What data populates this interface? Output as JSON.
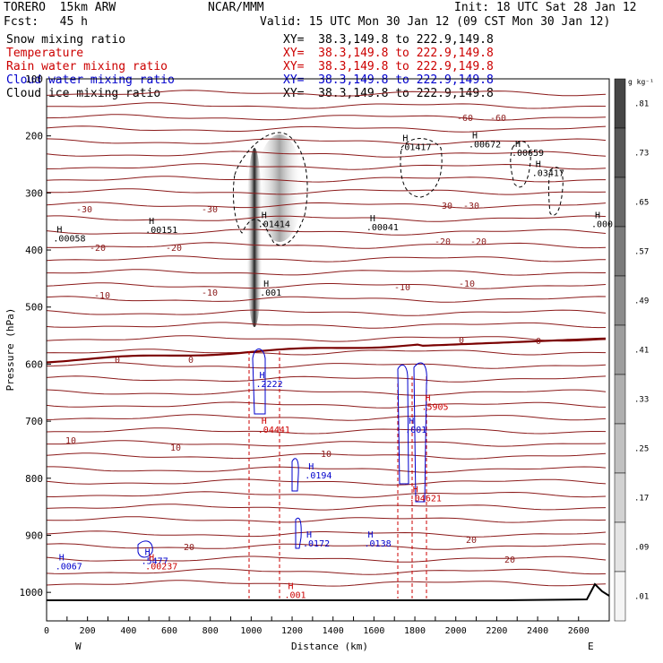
{
  "header": {
    "model": "TORERO  15km ARW",
    "center": "NCAR/MMM",
    "init": "Init: 18 UTC Sat 28 Jan 12",
    "fcst": "Fcst:   45 h",
    "valid": "Valid: 15 UTC Mon 30 Jan 12 (09 CST Mon 30 Jan 12)"
  },
  "fields": [
    {
      "name": "Snow mixing ratio",
      "xy": "XY=  38.3,149.8 to 222.9,149.8",
      "color": "#000000"
    },
    {
      "name": "Temperature",
      "xy": "XY=  38.3,149.8 to 222.9,149.8",
      "color": "#cc0000"
    },
    {
      "name": "Rain water mixing ratio",
      "xy": "XY=  38.3,149.8 to 222.9,149.8",
      "color": "#cc0000"
    },
    {
      "name": "Cloud water mixing ratio",
      "xy": "XY=  38.3,149.8 to 222.9,149.8",
      "color": "#0000cc"
    },
    {
      "name": "Cloud ice mixing ratio",
      "xy": "XY=  38.3,149.8 to 222.9,149.8",
      "color": "#000000"
    }
  ],
  "colorbar": {
    "unit": "g kg⁻¹",
    "labels": [
      ".81",
      ".73",
      ".65",
      ".57",
      ".49",
      ".41",
      ".33",
      ".25",
      ".17",
      ".09",
      ".01"
    ]
  },
  "chart_data": {
    "type": "cross-section",
    "xlabel": "Distance (km)",
    "ylabel": "Pressure (hPa)",
    "xlim": [
      0,
      2750
    ],
    "ylim": [
      1050,
      100
    ],
    "x_ticks": [
      0,
      100,
      200,
      300,
      400,
      500,
      600,
      700,
      800,
      900,
      1000,
      1100,
      1200,
      1300,
      1400,
      1500,
      1600,
      1700,
      1800,
      1900,
      2000,
      2100,
      2200,
      2300,
      2400,
      2500,
      2600
    ],
    "x_tick_labels": [
      "0",
      "200",
      "400",
      "600",
      "800",
      "1000",
      "1200",
      "1400",
      "1600",
      "1800",
      "2000",
      "2200",
      "2400",
      "2600"
    ],
    "y_tick_labels": [
      "100",
      "200",
      "300",
      "400",
      "500",
      "600",
      "700",
      "800",
      "900",
      "1000"
    ],
    "x_end_labels": {
      "left": "W",
      "right": "E"
    },
    "temperature_contour_labels": [
      "-60",
      "-60",
      "-30",
      "-30",
      "-30",
      "-30",
      "-20",
      "-20",
      "-20",
      "-20",
      "-10",
      "-10",
      "-10",
      "-10",
      "0",
      "0",
      "0",
      "0",
      "10",
      "10",
      "10",
      "20",
      "20",
      "20"
    ],
    "snow_maxima": [
      {
        "x": 1050,
        "p": 360,
        "label": ".01414"
      },
      {
        "x": 500,
        "p": 370,
        "label": ".00151"
      },
      {
        "x": 50,
        "p": 385,
        "label": ".00058"
      },
      {
        "x": 1580,
        "p": 365,
        "label": ".00041"
      },
      {
        "x": 1740,
        "p": 225,
        "label": ".01417"
      },
      {
        "x": 2080,
        "p": 220,
        "label": ".00672"
      },
      {
        "x": 2290,
        "p": 235,
        "label": ".00659"
      },
      {
        "x": 2390,
        "p": 270,
        "label": ".03417"
      },
      {
        "x": 2680,
        "p": 360,
        "label": ".000"
      }
    ],
    "cloud_ice_maxima": [
      {
        "x": 1060,
        "p": 480,
        "label": ".001"
      }
    ],
    "cloud_water_maxima": [
      {
        "x": 1040,
        "p": 640,
        "label": ".2222"
      },
      {
        "x": 1280,
        "p": 800,
        "label": ".0194"
      },
      {
        "x": 1270,
        "p": 920,
        "label": ".0172"
      },
      {
        "x": 1570,
        "p": 920,
        "label": ".0138"
      },
      {
        "x": 60,
        "p": 960,
        "label": ".0067"
      },
      {
        "x": 480,
        "p": 950,
        "label": ".5477"
      },
      {
        "x": 1770,
        "p": 720,
        "label": ".001"
      }
    ],
    "rain_maxima": [
      {
        "x": 1050,
        "p": 720,
        "label": ".04441"
      },
      {
        "x": 1790,
        "p": 840,
        "label": ".04621"
      },
      {
        "x": 1850,
        "p": 680,
        "label": ".5905"
      },
      {
        "x": 500,
        "p": 960,
        "label": ".00237"
      },
      {
        "x": 1180,
        "p": 1010,
        "label": ".001"
      }
    ]
  }
}
